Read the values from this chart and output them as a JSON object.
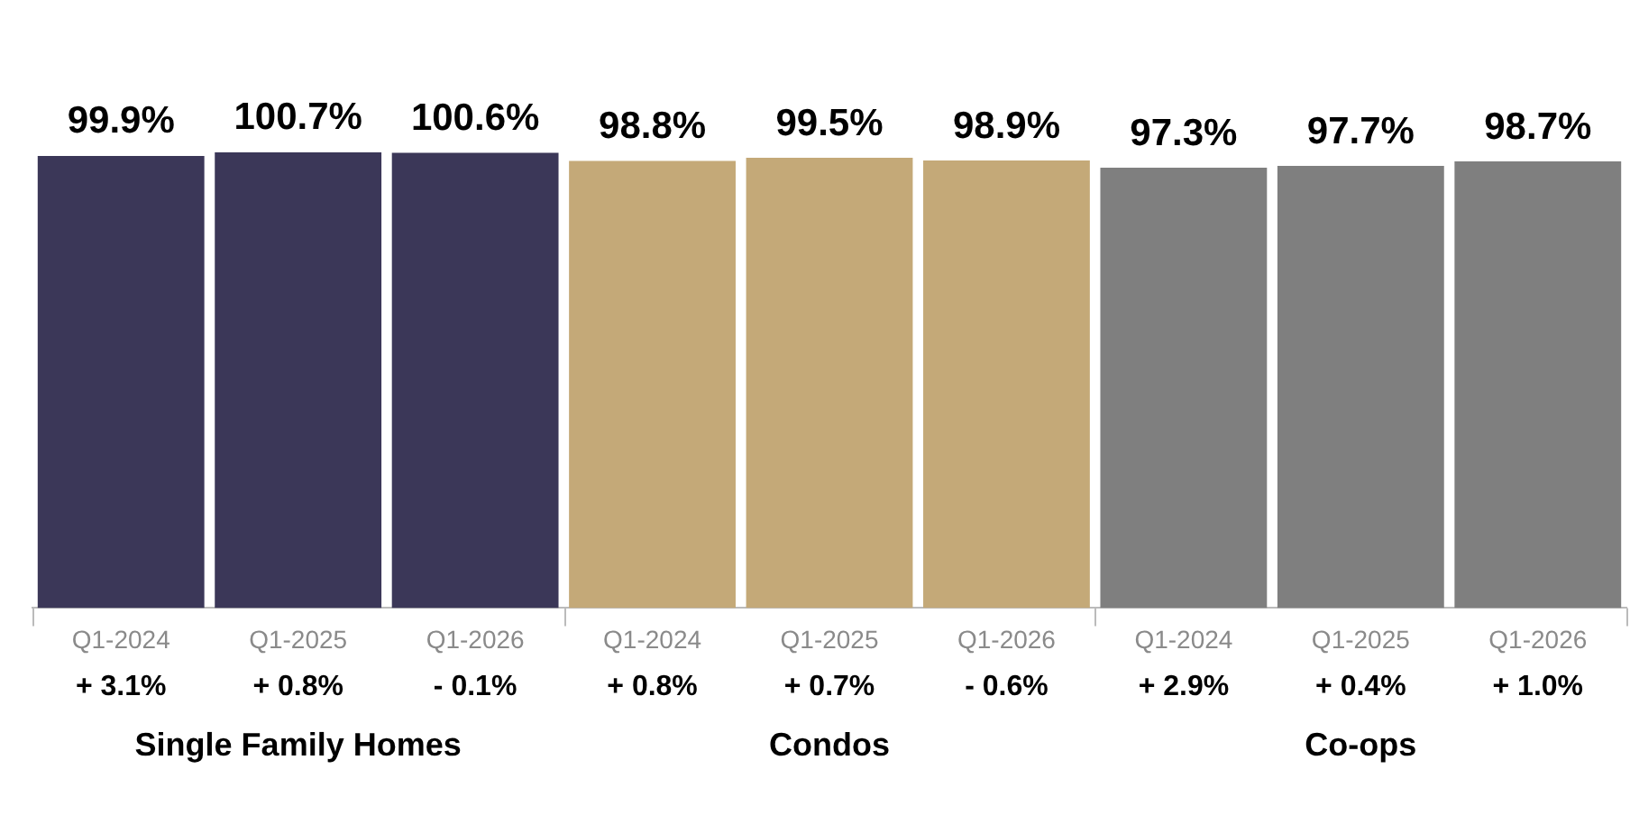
{
  "chart_data": {
    "type": "bar",
    "categories": [
      "Q1-2024",
      "Q1-2025",
      "Q1-2026",
      "Q1-2024",
      "Q1-2025",
      "Q1-2026",
      "Q1-2024",
      "Q1-2025",
      "Q1-2026"
    ],
    "values": [
      99.9,
      100.7,
      100.6,
      98.8,
      99.5,
      98.9,
      97.3,
      97.7,
      98.7
    ],
    "colors": [
      "#3b3758",
      "#3b3758",
      "#3b3758",
      "#c4a978",
      "#c4a978",
      "#c4a978",
      "#7f7f7f",
      "#7f7f7f",
      "#7f7f7f"
    ],
    "value_labels": [
      "99.9%",
      "100.7%",
      "100.6%",
      "98.8%",
      "99.5%",
      "98.9%",
      "97.3%",
      "97.7%",
      "98.7%"
    ],
    "annotations": [
      "+ 3.1%",
      "+ 0.8%",
      "- 0.1%",
      "+ 0.8%",
      "+ 0.7%",
      "- 0.6%",
      "+ 2.9%",
      "+ 0.4%",
      "+ 1.0%",
      "Single Family Homes",
      "Condos",
      "Co-ops"
    ],
    "tick_labels": "x",
    "grid": false,
    "legend": false
  }
}
